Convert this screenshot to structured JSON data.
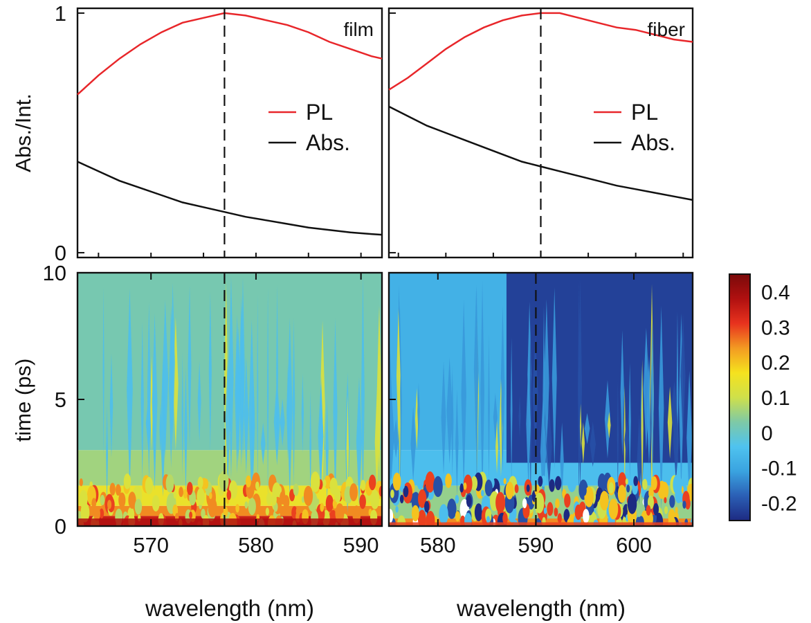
{
  "chart_data": [
    {
      "panel": "film-spectra",
      "type": "line",
      "annotation": "film",
      "ylabel": "Abs./Int.",
      "xlim": [
        563,
        592
      ],
      "ylim": [
        -0.02,
        1.02
      ],
      "yticks": [
        0,
        1
      ],
      "xticks_minor": [
        565,
        570,
        575,
        580,
        585,
        590
      ],
      "vline_x": 577,
      "legend": "center-right",
      "series": [
        {
          "name": "PL",
          "color": "#e8262a",
          "x": [
            563,
            565,
            567,
            569,
            571,
            573,
            575,
            577,
            579,
            581,
            583,
            585,
            587,
            589,
            591,
            592
          ],
          "y": [
            0.66,
            0.74,
            0.81,
            0.87,
            0.92,
            0.96,
            0.98,
            1.0,
            0.99,
            0.97,
            0.95,
            0.92,
            0.88,
            0.85,
            0.82,
            0.81
          ]
        },
        {
          "name": "Abs.",
          "color": "#111111",
          "x": [
            563,
            565,
            567,
            569,
            571,
            573,
            575,
            577,
            579,
            581,
            583,
            585,
            587,
            589,
            591,
            592
          ],
          "y": [
            0.38,
            0.34,
            0.3,
            0.27,
            0.24,
            0.21,
            0.19,
            0.17,
            0.15,
            0.135,
            0.12,
            0.105,
            0.095,
            0.085,
            0.078,
            0.075
          ]
        }
      ]
    },
    {
      "panel": "fiber-spectra",
      "type": "line",
      "annotation": "fiber",
      "xlim": [
        574,
        606
      ],
      "ylim": [
        -0.02,
        1.02
      ],
      "xticks_minor": [
        575,
        580,
        585,
        590,
        595,
        600,
        605
      ],
      "vline_x": 590,
      "legend": "center-right",
      "series": [
        {
          "name": "PL",
          "color": "#e8262a",
          "x": [
            574,
            576,
            578,
            580,
            582,
            584,
            586,
            588,
            590,
            592,
            594,
            596,
            598,
            600,
            602,
            604,
            606
          ],
          "y": [
            0.68,
            0.73,
            0.79,
            0.85,
            0.9,
            0.94,
            0.97,
            0.99,
            1.0,
            1.0,
            0.98,
            0.96,
            0.94,
            0.93,
            0.91,
            0.89,
            0.88
          ]
        },
        {
          "name": "Abs.",
          "color": "#111111",
          "x": [
            574,
            576,
            578,
            580,
            582,
            584,
            586,
            588,
            590,
            592,
            594,
            596,
            598,
            600,
            602,
            604,
            606
          ],
          "y": [
            0.61,
            0.57,
            0.53,
            0.5,
            0.47,
            0.44,
            0.41,
            0.38,
            0.36,
            0.34,
            0.32,
            0.3,
            0.28,
            0.265,
            0.25,
            0.235,
            0.22
          ]
        }
      ]
    },
    {
      "panel": "film-map",
      "type": "heatmap",
      "ylabel": "time (ps)",
      "xlabel": "wavelength (nm)",
      "xlim": [
        563,
        592
      ],
      "ylim": [
        0,
        10
      ],
      "xticks": [
        570,
        580,
        590
      ],
      "yticks": [
        0,
        5,
        10
      ],
      "vline_x": 577,
      "bands": [
        {
          "t": [
            0.0,
            0.4
          ],
          "value": 0.35
        },
        {
          "t": [
            0.4,
            0.8
          ],
          "value": 0.25
        },
        {
          "t": [
            0.8,
            1.6
          ],
          "value": 0.15
        },
        {
          "t": [
            1.6,
            3.0
          ],
          "value": 0.06
        },
        {
          "t": [
            3.0,
            10.0
          ],
          "value": 0.02
        }
      ],
      "stripes_value": -0.05
    },
    {
      "panel": "fiber-map",
      "type": "heatmap",
      "xlabel": "wavelength (nm)",
      "xlim": [
        575,
        606
      ],
      "ylim": [
        0,
        10
      ],
      "xticks": [
        580,
        590,
        600
      ],
      "vline_x": 590,
      "bands": [
        {
          "t": [
            0.0,
            0.3
          ],
          "value": 0.25
        },
        {
          "t": [
            0.3,
            1.6
          ],
          "value": 0.05
        },
        {
          "t": [
            1.6,
            3.0
          ],
          "value": -0.05
        },
        {
          "t": [
            3.0,
            10.0
          ],
          "value": -0.08
        }
      ],
      "dark_region": {
        "x_from": 587,
        "t_from": 2.5,
        "value": -0.22
      }
    }
  ],
  "colorbar": {
    "ticks": [
      "0.4",
      "0.3",
      "0.2",
      "0.1",
      "0",
      "-0.1",
      "-0.2"
    ],
    "tick_values": [
      0.4,
      0.3,
      0.2,
      0.1,
      0,
      -0.1,
      -0.2
    ],
    "range": [
      -0.25,
      0.45
    ],
    "stops": [
      "#1d2a82",
      "#2b5fb5",
      "#3aa3e0",
      "#4fc3ef",
      "#7ec9a6",
      "#cfe04a",
      "#f5e21e",
      "#f39a22",
      "#e8321e",
      "#b01010",
      "#7a0a0a"
    ]
  },
  "labels": {
    "ylabel_top": "Abs./Int.",
    "ylabel_bottom": "time (ps)",
    "xlabel_left": "wavelength (nm)",
    "xlabel_right": "wavelength (nm)",
    "film": "film",
    "fiber": "fiber",
    "pl": "PL",
    "abs": "Abs."
  }
}
